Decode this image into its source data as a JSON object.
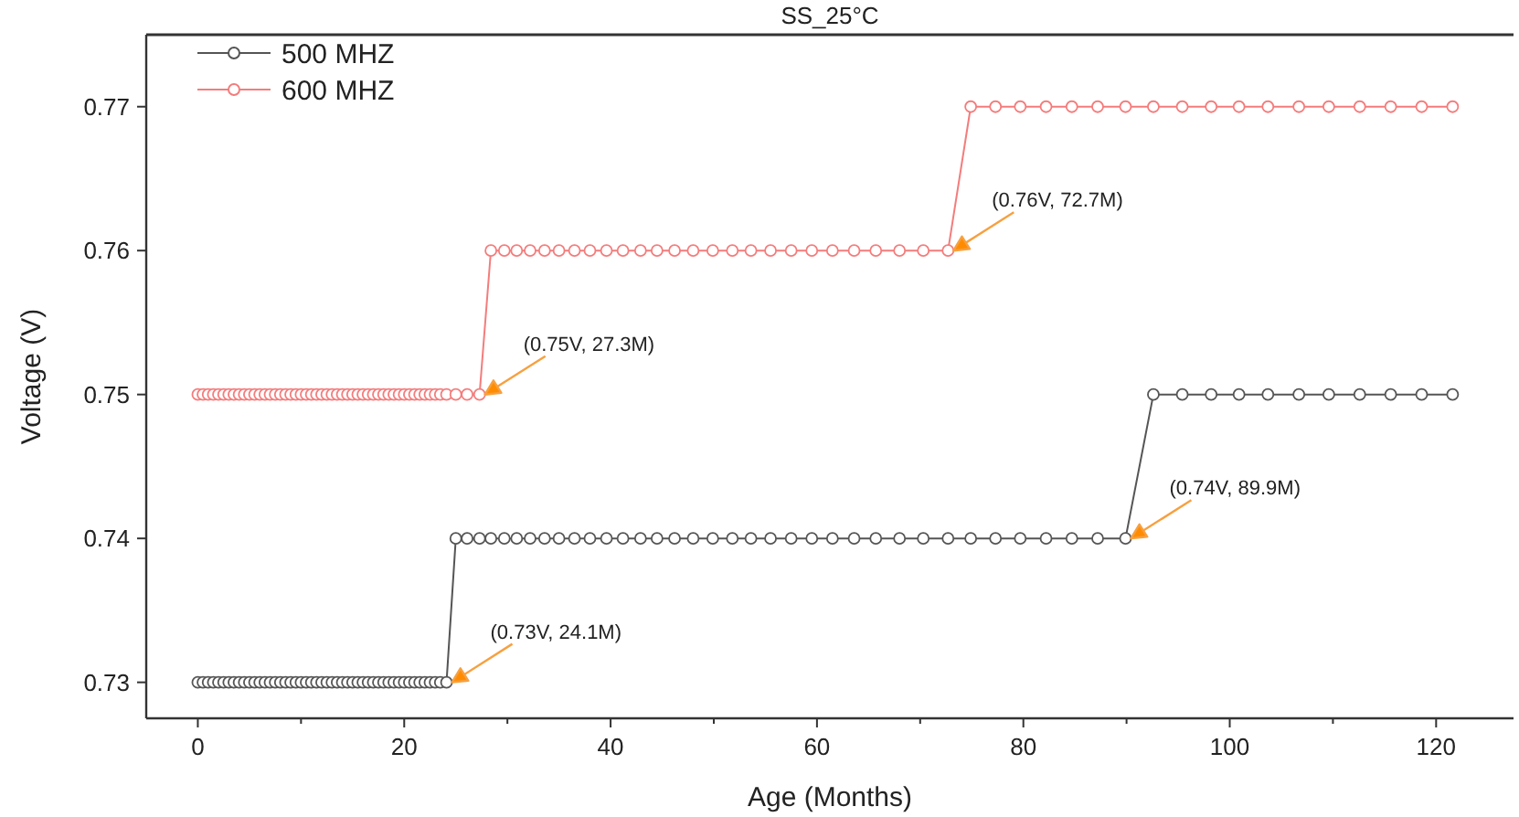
{
  "chart_data": {
    "type": "line",
    "title": "SS_25°C",
    "xlabel": "Age (Months)",
    "ylabel": "Voltage (V)",
    "x": [
      0,
      0.5,
      1,
      1.5,
      2,
      2.5,
      3,
      3.5,
      4,
      4.5,
      5,
      5.5,
      6,
      6.5,
      7,
      7.5,
      8,
      8.5,
      9,
      9.5,
      10,
      10.5,
      11,
      11.5,
      12,
      12.5,
      13,
      13.5,
      14,
      14.5,
      15,
      15.5,
      16,
      16.5,
      17,
      17.5,
      18,
      18.5,
      19,
      19.5,
      20,
      20.5,
      21,
      21.5,
      22,
      22.5,
      23,
      23.5,
      24.1,
      25.0,
      26.1,
      27.3,
      28.4,
      29.7,
      30.9,
      32.2,
      33.6,
      35.0,
      36.5,
      38.0,
      39.6,
      41.2,
      42.9,
      44.5,
      46.2,
      48.0,
      49.9,
      51.8,
      53.6,
      55.5,
      57.5,
      59.5,
      61.5,
      63.6,
      65.7,
      68.0,
      70.3,
      72.7,
      74.9,
      77.3,
      79.7,
      82.2,
      84.7,
      87.2,
      89.9,
      92.6,
      95.4,
      98.2,
      100.9,
      103.7,
      106.7,
      109.6,
      112.6,
      115.6,
      118.6,
      121.6
    ],
    "series": [
      {
        "name": "500 MHZ",
        "color": "#555555",
        "values": [
          0.73,
          0.73,
          0.73,
          0.73,
          0.73,
          0.73,
          0.73,
          0.73,
          0.73,
          0.73,
          0.73,
          0.73,
          0.73,
          0.73,
          0.73,
          0.73,
          0.73,
          0.73,
          0.73,
          0.73,
          0.73,
          0.73,
          0.73,
          0.73,
          0.73,
          0.73,
          0.73,
          0.73,
          0.73,
          0.73,
          0.73,
          0.73,
          0.73,
          0.73,
          0.73,
          0.73,
          0.73,
          0.73,
          0.73,
          0.73,
          0.73,
          0.73,
          0.73,
          0.73,
          0.73,
          0.73,
          0.73,
          0.73,
          0.73,
          0.74,
          0.74,
          0.74,
          0.74,
          0.74,
          0.74,
          0.74,
          0.74,
          0.74,
          0.74,
          0.74,
          0.74,
          0.74,
          0.74,
          0.74,
          0.74,
          0.74,
          0.74,
          0.74,
          0.74,
          0.74,
          0.74,
          0.74,
          0.74,
          0.74,
          0.74,
          0.74,
          0.74,
          0.74,
          0.74,
          0.74,
          0.74,
          0.74,
          0.74,
          0.74,
          0.74,
          0.75,
          0.75,
          0.75,
          0.75,
          0.75,
          0.75,
          0.75,
          0.75,
          0.75,
          0.75,
          0.75
        ]
      },
      {
        "name": "600 MHZ",
        "color": "#f47c7c",
        "values": [
          0.75,
          0.75,
          0.75,
          0.75,
          0.75,
          0.75,
          0.75,
          0.75,
          0.75,
          0.75,
          0.75,
          0.75,
          0.75,
          0.75,
          0.75,
          0.75,
          0.75,
          0.75,
          0.75,
          0.75,
          0.75,
          0.75,
          0.75,
          0.75,
          0.75,
          0.75,
          0.75,
          0.75,
          0.75,
          0.75,
          0.75,
          0.75,
          0.75,
          0.75,
          0.75,
          0.75,
          0.75,
          0.75,
          0.75,
          0.75,
          0.75,
          0.75,
          0.75,
          0.75,
          0.75,
          0.75,
          0.75,
          0.75,
          0.75,
          0.75,
          0.75,
          0.75,
          0.76,
          0.76,
          0.76,
          0.76,
          0.76,
          0.76,
          0.76,
          0.76,
          0.76,
          0.76,
          0.76,
          0.76,
          0.76,
          0.76,
          0.76,
          0.76,
          0.76,
          0.76,
          0.76,
          0.76,
          0.76,
          0.76,
          0.76,
          0.76,
          0.76,
          0.76,
          0.77,
          0.77,
          0.77,
          0.77,
          0.77,
          0.77,
          0.77,
          0.77,
          0.77,
          0.77,
          0.77,
          0.77,
          0.77,
          0.77,
          0.77,
          0.77,
          0.77,
          0.77
        ]
      }
    ],
    "xlim": [
      -5,
      127.5
    ],
    "xticks": [
      0,
      {
        "value": 10,
        "label": null
      },
      20,
      {
        "value": 30,
        "label": null
      },
      40,
      {
        "value": 50,
        "label": null
      },
      60,
      {
        "value": 70,
        "label": null
      },
      80,
      {
        "value": 90,
        "label": null
      },
      100,
      {
        "value": 110,
        "label": null
      },
      120
    ],
    "ylim": [
      0.7275,
      0.775
    ],
    "yticks": [
      0.73,
      0.74,
      0.75,
      0.76,
      0.77
    ],
    "annotations": [
      {
        "text": "(0.73V, 24.1M)",
        "x": 24.1,
        "y": 0.73
      },
      {
        "text": "(0.74V, 89.9M)",
        "x": 89.9,
        "y": 0.74
      },
      {
        "text": "(0.75V, 27.3M)",
        "x": 27.3,
        "y": 0.75
      },
      {
        "text": "(0.76V, 72.7M)",
        "x": 72.7,
        "y": 0.76
      }
    ],
    "legend": "top left",
    "marker": "circle",
    "line_style": "solid",
    "grid": false
  }
}
